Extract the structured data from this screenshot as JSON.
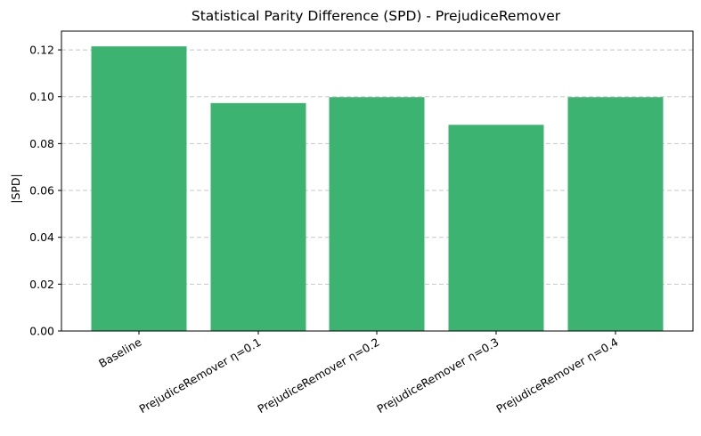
{
  "chart_data": {
    "type": "bar",
    "title": "Statistical Parity Difference (SPD) - PrejudiceRemover",
    "xlabel": "",
    "ylabel": "|SPD|",
    "categories": [
      "Baseline",
      "PrejudiceRemover η=0.1",
      "PrejudiceRemover η=0.2",
      "PrejudiceRemover η=0.3",
      "PrejudiceRemover η=0.4"
    ],
    "values": [
      0.1215,
      0.0973,
      0.0998,
      0.088,
      0.0998
    ],
    "ylim": [
      0,
      0.128
    ],
    "yticks": [
      0.0,
      0.02,
      0.04,
      0.06,
      0.08,
      0.1,
      0.12
    ],
    "ytick_labels": [
      "0.00",
      "0.02",
      "0.04",
      "0.06",
      "0.08",
      "0.10",
      "0.12"
    ],
    "grid": "y-dashed",
    "bar_color": "#3cb371",
    "xtick_rotation_deg": 30
  }
}
